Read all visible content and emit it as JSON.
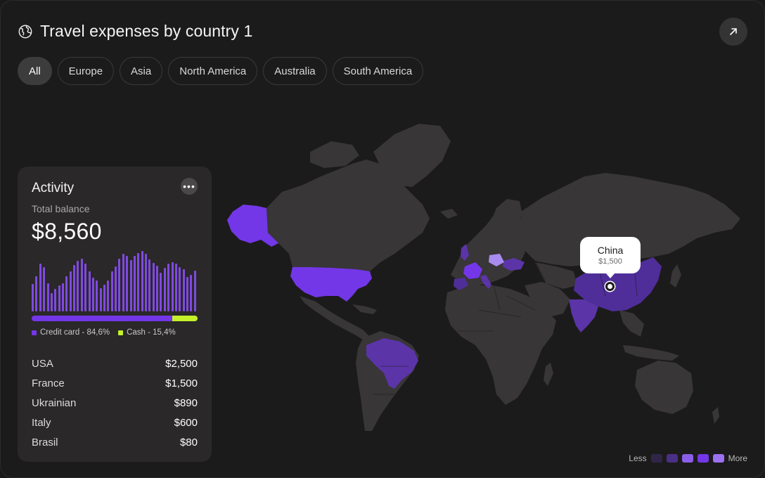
{
  "header": {
    "title": "Travel expenses by country 1",
    "icon": "globe-icon",
    "action_icon": "arrow-up-right-icon"
  },
  "tabs": [
    {
      "label": "All",
      "active": true
    },
    {
      "label": "Europe",
      "active": false
    },
    {
      "label": "Asia",
      "active": false
    },
    {
      "label": "North America",
      "active": false
    },
    {
      "label": "Australia",
      "active": false
    },
    {
      "label": "South America",
      "active": false
    }
  ],
  "tooltip": {
    "country": "China",
    "value": "$1,500"
  },
  "activity": {
    "title": "Activity",
    "balance_label": "Total balance",
    "balance_value": "$8,560",
    "credit_share": 84.6,
    "legend": {
      "credit": "Credit card - 84,6%",
      "cash": "Cash - 15,4%"
    },
    "bars": [
      44,
      57,
      78,
      72,
      46,
      30,
      36,
      42,
      46,
      57,
      65,
      75,
      82,
      85,
      78,
      65,
      55,
      50,
      38,
      43,
      50,
      65,
      73,
      85,
      93,
      90,
      83,
      90,
      95,
      98,
      93,
      84,
      79,
      74,
      63,
      71,
      78,
      80,
      78,
      72,
      68,
      56,
      59,
      66
    ],
    "colors": {
      "bar": "#7f4ae0",
      "credit": "#7337e8",
      "cash": "#c4f12a"
    },
    "rows": [
      {
        "country": "USA",
        "value": "$2,500"
      },
      {
        "country": "France",
        "value": "$1,500"
      },
      {
        "country": "Ukrainian",
        "value": "$890"
      },
      {
        "country": "Italy",
        "value": "$600"
      },
      {
        "country": "Brasil",
        "value": "$80"
      }
    ]
  },
  "scale": {
    "less": "Less",
    "more": "More",
    "colors": [
      "#2f2646",
      "#4a2f86",
      "#8a5ee8",
      "#7337e8",
      "#9a72f0"
    ]
  },
  "map_colors": {
    "land": "#383636",
    "usa": "#7337e8",
    "alaska": "#7337e8",
    "brazil": "#5b34a8",
    "china": "#4f2e9a",
    "india": "#5b34a8",
    "france": "#7337e8",
    "poland": "#a98bf0"
  }
}
